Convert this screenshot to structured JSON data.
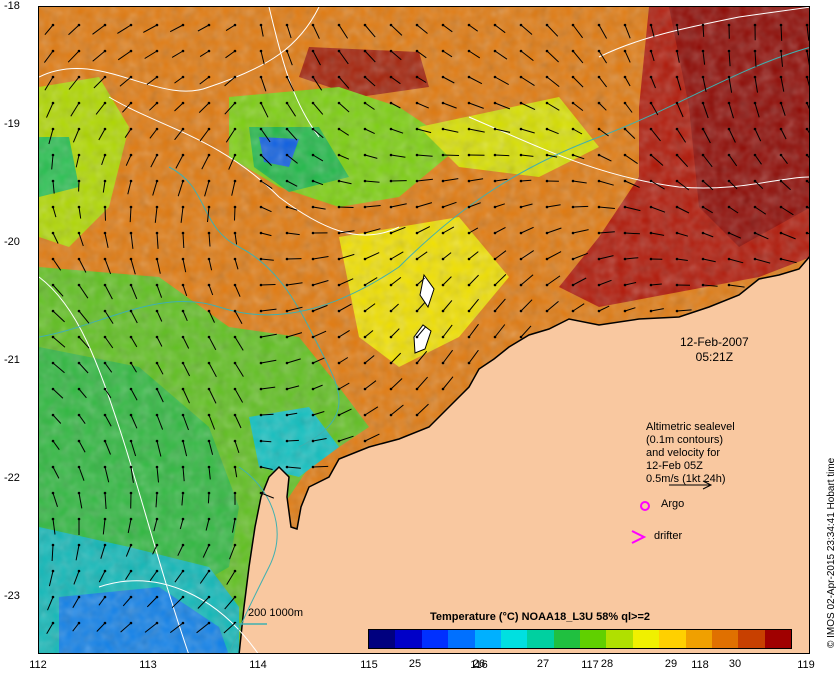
{
  "map": {
    "lon_ticks": [
      "112",
      "113",
      "114",
      "115",
      "116",
      "117",
      "118",
      "119"
    ],
    "lat_ticks": [
      "-18",
      "-19",
      "-20",
      "-21",
      "-22",
      "-23"
    ],
    "lon_range": [
      112,
      119
    ],
    "lat_range": [
      -18,
      -23.5
    ],
    "colors": {
      "land": "#f9c8a0",
      "coastline": "#000000",
      "arrow": "#000000",
      "contour": "#ffffff",
      "bathy": "#3fb0b0",
      "argo": "#ff00ff",
      "drifter": "#ff00ff"
    }
  },
  "timestamp": {
    "date": "12-Feb-2007",
    "time": "05:21Z"
  },
  "legend": {
    "line1": "Altimetric sealevel",
    "line2": "(0.1m contours)",
    "line3": "and velocity for",
    "line4": "12-Feb 05Z",
    "line5": "0.5m/s (1kt 24h)",
    "argo": "Argo",
    "drifter": "drifter",
    "bathy": "200  1000m"
  },
  "colorbar": {
    "title": "Temperature (°C) NOAA18_L3U 58% ql>=2",
    "ticks": [
      "25",
      "26",
      "27",
      "28",
      "29",
      "30"
    ],
    "range": [
      24.0,
      30.6
    ],
    "palette": [
      "#00007f",
      "#0000c8",
      "#0030ff",
      "#0070ff",
      "#00b0ff",
      "#00e0e0",
      "#00d0a0",
      "#20c040",
      "#60d000",
      "#b0e000",
      "#f0f000",
      "#ffd000",
      "#f0a000",
      "#e07000",
      "#c84000",
      "#a00000"
    ]
  },
  "credit": "© IMOS 02-Apr-2015 23:34:41 Hobart time"
}
